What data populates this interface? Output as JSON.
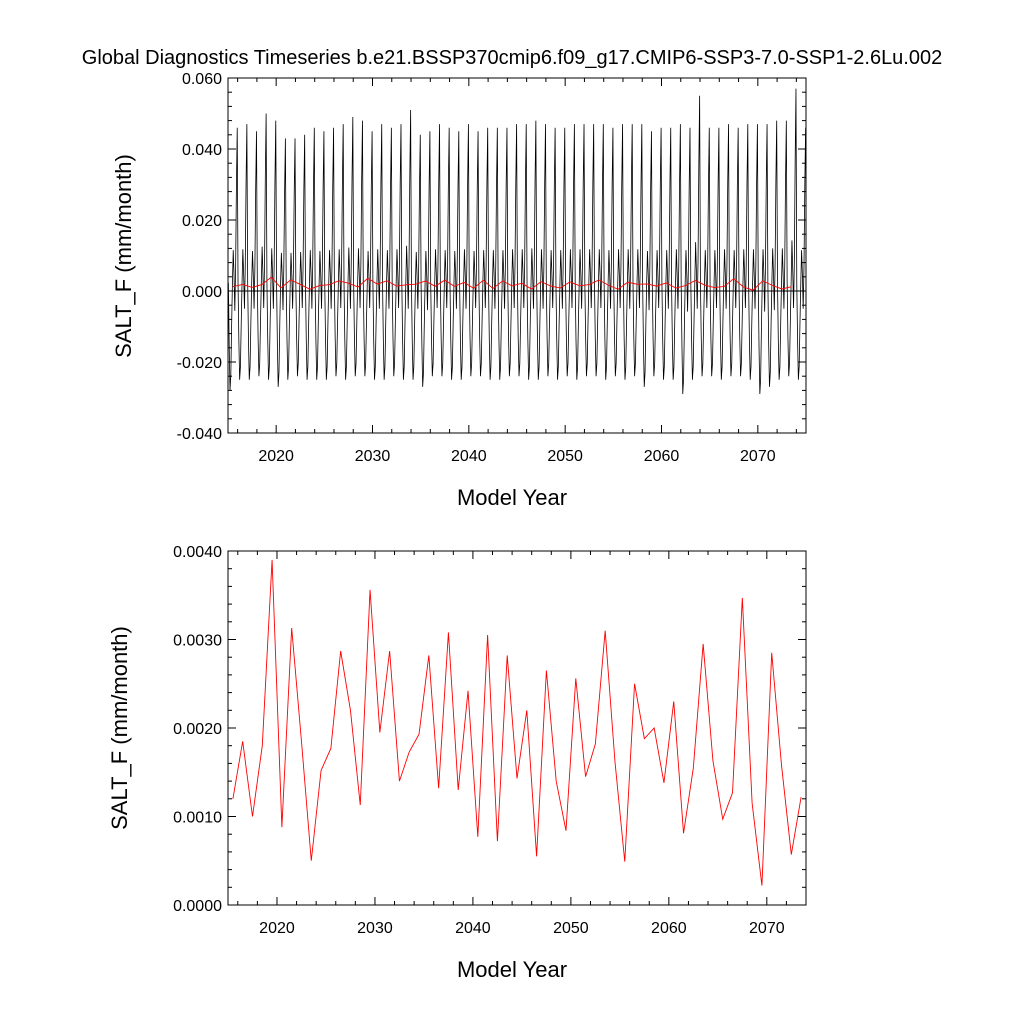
{
  "title": "Global Diagnostics Timeseries b.e21.BSSP370cmip6.f09_g17.CMIP6-SSP3-7.0-SSP1-2.6Lu.002",
  "colors": {
    "monthly": "#000000",
    "annual": "#ff0000",
    "zero_line": "#000000"
  },
  "chart_data": [
    {
      "type": "line",
      "xlabel": "Model Year",
      "ylabel": "SALT_F (mm/month)",
      "xlim": [
        2015,
        2075
      ],
      "ylim": [
        -0.04,
        0.06
      ],
      "xticks": [
        2020,
        2030,
        2040,
        2050,
        2060,
        2070
      ],
      "xtick_labels": [
        "2020",
        "2030",
        "2040",
        "2050",
        "2060",
        "2070"
      ],
      "yticks": [
        -0.04,
        -0.02,
        0.0,
        0.02,
        0.04,
        0.06
      ],
      "ytick_labels": [
        "-0.040",
        "-0.020",
        "0.000",
        "0.020",
        "0.040",
        "0.060"
      ],
      "reference_line_y": 0.0,
      "monthly_cycle": {
        "start_year": 2015,
        "end_year": 2075,
        "annual_maxima": [
          0.046,
          0.047,
          0.045,
          0.05,
          0.048,
          0.043,
          0.043,
          0.044,
          0.046,
          0.045,
          0.046,
          0.047,
          0.049,
          0.048,
          0.045,
          0.047,
          0.046,
          0.047,
          0.051,
          0.044,
          0.045,
          0.047,
          0.046,
          0.045,
          0.047,
          0.045,
          0.046,
          0.046,
          0.046,
          0.047,
          0.047,
          0.048,
          0.047,
          0.046,
          0.046,
          0.047,
          0.047,
          0.047,
          0.047,
          0.046,
          0.047,
          0.047,
          0.047,
          0.045,
          0.046,
          0.046,
          0.047,
          0.046,
          0.055,
          0.046,
          0.046,
          0.047,
          0.046,
          0.047,
          0.047,
          0.047,
          0.048,
          0.048,
          0.057,
          0.046
        ],
        "annual_minima": [
          -0.028,
          -0.025,
          -0.025,
          -0.024,
          -0.025,
          -0.027,
          -0.025,
          -0.024,
          -0.025,
          -0.025,
          -0.025,
          -0.024,
          -0.025,
          -0.024,
          -0.024,
          -0.025,
          -0.025,
          -0.024,
          -0.025,
          -0.025,
          -0.027,
          -0.024,
          -0.024,
          -0.025,
          -0.025,
          -0.024,
          -0.024,
          -0.025,
          -0.025,
          -0.024,
          -0.024,
          -0.025,
          -0.025,
          -0.024,
          -0.025,
          -0.024,
          -0.025,
          -0.024,
          -0.024,
          -0.025,
          -0.024,
          -0.025,
          -0.024,
          -0.027,
          -0.024,
          -0.025,
          -0.025,
          -0.029,
          -0.025,
          -0.024,
          -0.024,
          -0.025,
          -0.024,
          -0.024,
          -0.025,
          -0.029,
          -0.027,
          -0.025,
          -0.024,
          -0.025
        ]
      },
      "series": [
        {
          "key": "annual",
          "values_ref": "annual_means"
        }
      ]
    },
    {
      "type": "line",
      "xlabel": "Model Year",
      "ylabel": "SALT_F (mm/month)",
      "xlim": [
        2015,
        2074
      ],
      "ylim": [
        0.0,
        0.004
      ],
      "xticks": [
        2020,
        2030,
        2040,
        2050,
        2060,
        2070
      ],
      "xtick_labels": [
        "2020",
        "2030",
        "2040",
        "2050",
        "2060",
        "2070"
      ],
      "yticks": [
        0.0,
        0.001,
        0.002,
        0.003,
        0.004
      ],
      "ytick_labels": [
        "0.0000",
        "0.0010",
        "0.0020",
        "0.0030",
        "0.0040"
      ],
      "series": [
        {
          "key": "annual",
          "values_ref": "annual_means"
        }
      ]
    }
  ],
  "annual_means": {
    "x": [
      2015.5,
      2016.5,
      2017.5,
      2018.5,
      2019.5,
      2020.5,
      2021.5,
      2022.5,
      2023.5,
      2024.5,
      2025.5,
      2026.5,
      2027.5,
      2028.5,
      2029.5,
      2030.5,
      2031.5,
      2032.5,
      2033.5,
      2034.5,
      2035.5,
      2036.5,
      2037.5,
      2038.5,
      2039.5,
      2040.5,
      2041.5,
      2042.5,
      2043.5,
      2044.5,
      2045.5,
      2046.5,
      2047.5,
      2048.5,
      2049.5,
      2050.5,
      2051.5,
      2052.5,
      2053.5,
      2054.5,
      2055.5,
      2056.5,
      2057.5,
      2058.5,
      2059.5,
      2060.5,
      2061.5,
      2062.5,
      2063.5,
      2064.5,
      2065.5,
      2066.5,
      2067.5,
      2068.5,
      2069.5,
      2070.5,
      2071.5,
      2072.5,
      2073.5
    ],
    "y": [
      0.0012,
      0.00185,
      0.001,
      0.0018,
      0.0039,
      0.00088,
      0.00313,
      0.00185,
      0.0005,
      0.00152,
      0.00177,
      0.00287,
      0.0022,
      0.00113,
      0.00356,
      0.00195,
      0.00287,
      0.0014,
      0.00173,
      0.00193,
      0.00282,
      0.00132,
      0.00308,
      0.0013,
      0.00242,
      0.00077,
      0.00305,
      0.00072,
      0.00282,
      0.00143,
      0.0022,
      0.00055,
      0.00265,
      0.0014,
      0.00084,
      0.00256,
      0.00145,
      0.00182,
      0.0031,
      0.00162,
      0.00049,
      0.0025,
      0.00188,
      0.002,
      0.00138,
      0.0023,
      0.00081,
      0.00155,
      0.00295,
      0.00163,
      0.00097,
      0.00127,
      0.00347,
      0.00115,
      0.00022,
      0.00285,
      0.00158,
      0.00057,
      0.00122
    ]
  }
}
